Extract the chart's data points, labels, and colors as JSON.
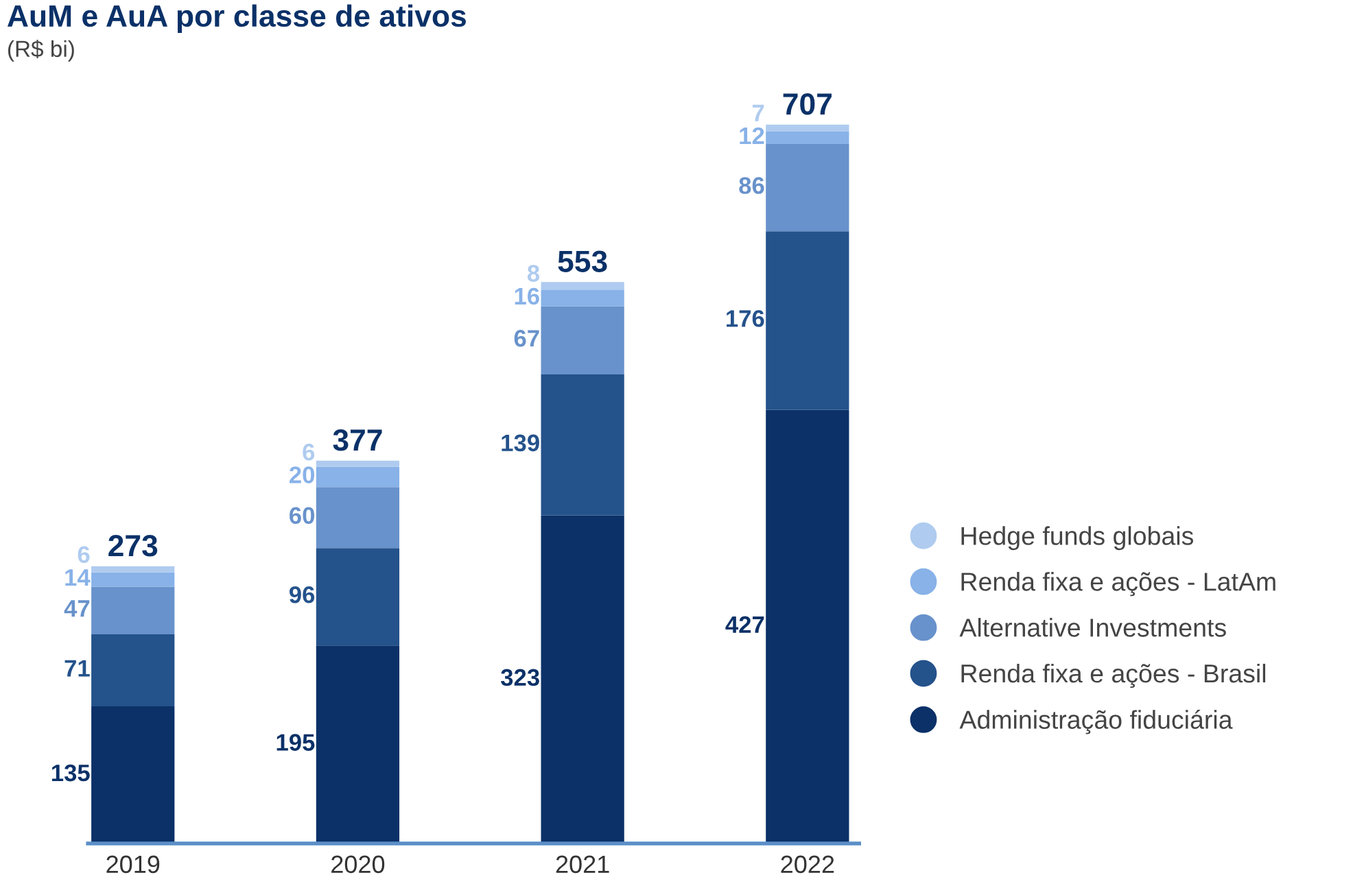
{
  "chart_data": {
    "type": "bar",
    "title": "AuM e AuA por classe de ativos",
    "subtitle": "(R$ bi)",
    "categories": [
      "2019",
      "2020",
      "2021",
      "2022"
    ],
    "stacked": true,
    "data_labels": true,
    "legend": "right",
    "totals": [
      "273",
      "377",
      "553",
      "707"
    ],
    "series": [
      {
        "name": "Administração fiduciária",
        "color": "#0b3168",
        "values": [
          135,
          195,
          323,
          427
        ]
      },
      {
        "name": "Renda fixa e ações - Brasil",
        "color": "#24528b",
        "values": [
          71,
          96,
          139,
          176
        ]
      },
      {
        "name": "Alternative Investments",
        "color": "#6892cb",
        "values": [
          47,
          60,
          67,
          86
        ]
      },
      {
        "name": "Renda fixa e ações - LatAm",
        "color": "#88b2e8",
        "values": [
          14,
          20,
          16,
          12
        ]
      },
      {
        "name": "Hedge funds globais",
        "color": "#afcbef",
        "values": [
          6,
          6,
          8,
          7
        ]
      }
    ]
  }
}
